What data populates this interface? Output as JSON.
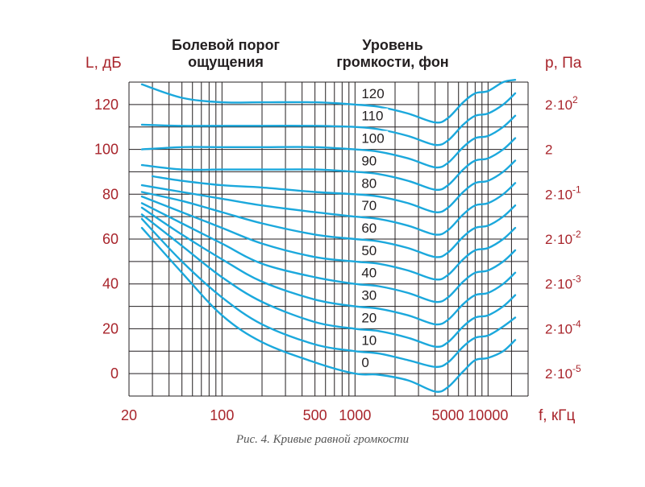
{
  "chart_data": {
    "type": "line",
    "headers": {
      "pain_threshold": [
        "Болевой порог",
        "ощущения"
      ],
      "loudness_level": [
        "Уровень",
        "громкости, фон"
      ]
    },
    "ylabel": "L, дБ",
    "ylabel_right": "p, Па",
    "xlabel": "f, кГц",
    "ylim": [
      -10,
      130
    ],
    "xlim": [
      20,
      20000
    ],
    "x_scale": "log",
    "y_ticks": [
      {
        "value": 120,
        "label": "120"
      },
      {
        "value": 100,
        "label": "100"
      },
      {
        "value": 80,
        "label": "80"
      },
      {
        "value": 60,
        "label": "60"
      },
      {
        "value": 40,
        "label": "40"
      },
      {
        "value": 20,
        "label": "20"
      },
      {
        "value": 0,
        "label": "0"
      }
    ],
    "y_ticks_right": [
      {
        "value": 120,
        "base": "2·10",
        "exp": "2"
      },
      {
        "value": 100,
        "base": "2",
        "exp": ""
      },
      {
        "value": 80,
        "base": "2·10",
        "exp": "-1"
      },
      {
        "value": 60,
        "base": "2·10",
        "exp": "-2"
      },
      {
        "value": 40,
        "base": "2·10",
        "exp": "-3"
      },
      {
        "value": 20,
        "base": "2·10",
        "exp": "-4"
      },
      {
        "value": 0,
        "base": "2·10",
        "exp": "-5"
      }
    ],
    "x_ticks": [
      {
        "value": 20,
        "label": "20"
      },
      {
        "value": 100,
        "label": "100"
      },
      {
        "value": 500,
        "label": "500"
      },
      {
        "value": 1000,
        "label": "1000"
      },
      {
        "value": 5000,
        "label": "5000"
      },
      {
        "value": 10000,
        "label": "10000"
      }
    ],
    "grid": {
      "vertical_lines_hz": [
        20,
        30,
        40,
        50,
        60,
        70,
        80,
        90,
        100,
        200,
        300,
        400,
        500,
        600,
        700,
        800,
        900,
        1000,
        2000,
        3000,
        4000,
        5000,
        6000,
        7000,
        8000,
        9000,
        10000,
        15000,
        20000
      ],
      "horizontal_step_db": 10
    },
    "series": [
      {
        "name": "0",
        "points": [
          [
            25,
            65
          ],
          [
            50,
            45
          ],
          [
            100,
            26
          ],
          [
            200,
            14
          ],
          [
            500,
            5
          ],
          [
            1000,
            0
          ],
          [
            1500,
            -0.5
          ],
          [
            2500,
            -3
          ],
          [
            4000,
            -8
          ],
          [
            5000,
            -6
          ],
          [
            6500,
            1
          ],
          [
            8000,
            6
          ],
          [
            10000,
            7
          ],
          [
            13000,
            10
          ],
          [
            16000,
            15
          ]
        ]
      },
      {
        "name": "10",
        "points": [
          [
            25,
            69
          ],
          [
            50,
            50
          ],
          [
            100,
            34
          ],
          [
            200,
            22
          ],
          [
            500,
            13
          ],
          [
            1000,
            10
          ],
          [
            1500,
            9
          ],
          [
            2500,
            6
          ],
          [
            4000,
            3
          ],
          [
            5000,
            5
          ],
          [
            6500,
            12
          ],
          [
            8000,
            16
          ],
          [
            10000,
            17
          ],
          [
            13000,
            21
          ],
          [
            16000,
            25
          ]
        ]
      },
      {
        "name": "20",
        "points": [
          [
            25,
            71
          ],
          [
            50,
            57
          ],
          [
            100,
            43
          ],
          [
            200,
            32
          ],
          [
            500,
            23
          ],
          [
            1000,
            20
          ],
          [
            1500,
            19
          ],
          [
            2500,
            16
          ],
          [
            4000,
            12
          ],
          [
            5000,
            14
          ],
          [
            6500,
            21
          ],
          [
            8000,
            25
          ],
          [
            10000,
            26
          ],
          [
            13000,
            30
          ],
          [
            16000,
            35
          ]
        ]
      },
      {
        "name": "30",
        "points": [
          [
            25,
            74
          ],
          [
            50,
            62
          ],
          [
            100,
            51
          ],
          [
            200,
            41
          ],
          [
            500,
            33
          ],
          [
            1000,
            30
          ],
          [
            1500,
            29
          ],
          [
            2500,
            26
          ],
          [
            4000,
            22
          ],
          [
            5000,
            24
          ],
          [
            6500,
            31
          ],
          [
            8000,
            35
          ],
          [
            10000,
            36
          ],
          [
            13000,
            40
          ],
          [
            16000,
            45
          ]
        ]
      },
      {
        "name": "40",
        "points": [
          [
            25,
            76
          ],
          [
            50,
            67
          ],
          [
            100,
            58
          ],
          [
            200,
            49
          ],
          [
            500,
            43
          ],
          [
            1000,
            40
          ],
          [
            1500,
            39
          ],
          [
            2500,
            36
          ],
          [
            4000,
            32
          ],
          [
            5000,
            34
          ],
          [
            6500,
            41
          ],
          [
            8000,
            45
          ],
          [
            10000,
            46
          ],
          [
            13000,
            50
          ],
          [
            16000,
            55
          ]
        ]
      },
      {
        "name": "50",
        "points": [
          [
            25,
            79
          ],
          [
            50,
            72
          ],
          [
            100,
            65
          ],
          [
            200,
            58
          ],
          [
            500,
            52
          ],
          [
            1000,
            50
          ],
          [
            1500,
            49
          ],
          [
            2500,
            46
          ],
          [
            4000,
            42
          ],
          [
            5000,
            44
          ],
          [
            6500,
            51
          ],
          [
            8000,
            55
          ],
          [
            10000,
            56
          ],
          [
            13000,
            60
          ],
          [
            16000,
            65
          ]
        ]
      },
      {
        "name": "60",
        "points": [
          [
            25,
            81
          ],
          [
            50,
            77
          ],
          [
            100,
            72
          ],
          [
            200,
            67
          ],
          [
            500,
            62
          ],
          [
            1000,
            60
          ],
          [
            1500,
            59
          ],
          [
            2500,
            56
          ],
          [
            4000,
            52
          ],
          [
            5000,
            54
          ],
          [
            6500,
            61
          ],
          [
            8000,
            65
          ],
          [
            10000,
            66
          ],
          [
            13000,
            70
          ],
          [
            16000,
            75
          ]
        ]
      },
      {
        "name": "70",
        "points": [
          [
            25,
            84
          ],
          [
            50,
            81
          ],
          [
            100,
            78
          ],
          [
            200,
            75
          ],
          [
            500,
            72
          ],
          [
            1000,
            70
          ],
          [
            1500,
            69
          ],
          [
            2500,
            66
          ],
          [
            4000,
            62
          ],
          [
            5000,
            64
          ],
          [
            6500,
            71
          ],
          [
            8000,
            75
          ],
          [
            10000,
            76
          ],
          [
            13000,
            80
          ],
          [
            16000,
            85
          ]
        ]
      },
      {
        "name": "80",
        "points": [
          [
            30,
            88
          ],
          [
            50,
            86
          ],
          [
            100,
            84
          ],
          [
            200,
            83
          ],
          [
            500,
            81
          ],
          [
            1000,
            80
          ],
          [
            1500,
            79
          ],
          [
            2500,
            76
          ],
          [
            4000,
            72
          ],
          [
            5000,
            74
          ],
          [
            6500,
            81
          ],
          [
            8000,
            85
          ],
          [
            10000,
            86
          ],
          [
            13000,
            90
          ],
          [
            16000,
            95
          ]
        ]
      },
      {
        "name": "90",
        "points": [
          [
            25,
            93
          ],
          [
            50,
            91
          ],
          [
            100,
            91
          ],
          [
            200,
            91
          ],
          [
            500,
            91
          ],
          [
            1000,
            90
          ],
          [
            1500,
            89
          ],
          [
            2500,
            86
          ],
          [
            4000,
            82
          ],
          [
            5000,
            84
          ],
          [
            6500,
            91
          ],
          [
            8000,
            95
          ],
          [
            10000,
            96
          ],
          [
            13000,
            100
          ],
          [
            16000,
            105
          ]
        ]
      },
      {
        "name": "100",
        "points": [
          [
            25,
            100
          ],
          [
            50,
            101
          ],
          [
            100,
            101
          ],
          [
            200,
            101
          ],
          [
            500,
            101
          ],
          [
            1000,
            100
          ],
          [
            1500,
            99
          ],
          [
            2500,
            96
          ],
          [
            4000,
            92
          ],
          [
            5000,
            94
          ],
          [
            6500,
            101
          ],
          [
            8000,
            105
          ],
          [
            10000,
            106
          ],
          [
            13000,
            110
          ],
          [
            16000,
            115
          ]
        ]
      },
      {
        "name": "110",
        "points": [
          [
            25,
            111
          ],
          [
            50,
            110.5
          ],
          [
            100,
            110.5
          ],
          [
            200,
            110.5
          ],
          [
            500,
            110.5
          ],
          [
            1000,
            110
          ],
          [
            1500,
            109
          ],
          [
            2500,
            106
          ],
          [
            4000,
            102
          ],
          [
            5000,
            104
          ],
          [
            6500,
            111
          ],
          [
            8000,
            115
          ],
          [
            10000,
            116
          ],
          [
            13000,
            120
          ],
          [
            16000,
            125
          ]
        ]
      },
      {
        "name": "120",
        "points": [
          [
            25,
            129
          ],
          [
            50,
            123
          ],
          [
            100,
            121
          ],
          [
            200,
            121
          ],
          [
            500,
            121
          ],
          [
            1000,
            120
          ],
          [
            1500,
            119
          ],
          [
            2500,
            116
          ],
          [
            4000,
            112
          ],
          [
            5000,
            114
          ],
          [
            6500,
            121
          ],
          [
            8000,
            125
          ],
          [
            10000,
            126
          ],
          [
            13000,
            130
          ],
          [
            16000,
            135
          ]
        ]
      }
    ]
  },
  "caption": "Рис. 4. Кривые равной громкости",
  "colors": {
    "curve": "#1ba8dc",
    "grid": "#231f20",
    "axis_label": "#a8242b",
    "series_label": "#231f20"
  }
}
